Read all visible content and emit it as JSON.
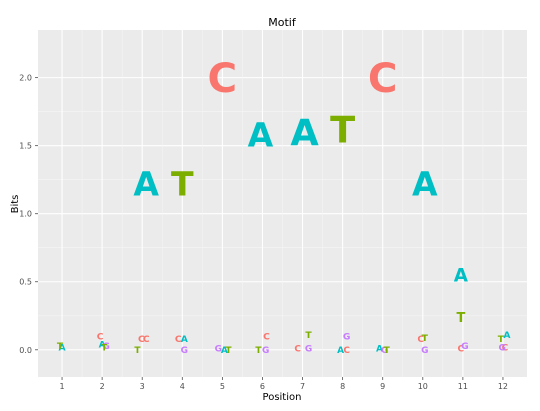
{
  "chart_data": {
    "type": "sequence-logo",
    "title": "Motif",
    "xlabel": "Position",
    "ylabel": "Bits",
    "x_ticks": [
      "1",
      "2",
      "3",
      "4",
      "5",
      "6",
      "7",
      "8",
      "9",
      "10",
      "11",
      "12"
    ],
    "y_ticks": [
      "0.0",
      "0.5",
      "1.0",
      "1.5",
      "2.0"
    ],
    "y_tick_values": [
      0,
      0.5,
      1.0,
      1.5,
      2.0
    ],
    "ylim": [
      -0.2,
      2.35
    ],
    "xlim": [
      0.4,
      12.6
    ],
    "grid": true,
    "letter_colors": {
      "A": "#00BFC4",
      "C": "#F8766D",
      "G": "#C77CFF",
      "T": "#7CAE00"
    },
    "positions": [
      {
        "pos": 1,
        "letters": [
          {
            "l": "A",
            "x": 1.0,
            "y": 0.02,
            "size": 0.05
          },
          {
            "l": "T",
            "x": 0.95,
            "y": 0.03,
            "size": 0.05
          }
        ]
      },
      {
        "pos": 2,
        "letters": [
          {
            "l": "C",
            "x": 1.95,
            "y": 0.1,
            "size": 0.05
          },
          {
            "l": "A",
            "x": 2.0,
            "y": 0.04,
            "size": 0.05
          },
          {
            "l": "G",
            "x": 2.1,
            "y": 0.03,
            "size": 0.045
          },
          {
            "l": "T",
            "x": 2.05,
            "y": 0.02,
            "size": 0.045
          }
        ]
      },
      {
        "pos": 3,
        "letters": [
          {
            "l": "C",
            "x": 2.98,
            "y": 0.08,
            "size": 0.05
          },
          {
            "l": "C",
            "x": 3.1,
            "y": 0.08,
            "size": 0.05
          },
          {
            "l": "T",
            "x": 2.88,
            "y": 0.0,
            "size": 0.045
          }
        ]
      },
      {
        "pos": 4,
        "letters": [
          {
            "l": "C",
            "x": 3.9,
            "y": 0.08,
            "size": 0.05
          },
          {
            "l": "A",
            "x": 4.05,
            "y": 0.08,
            "size": 0.05
          },
          {
            "l": "G",
            "x": 4.05,
            "y": 0.0,
            "size": 0.045
          }
        ]
      },
      {
        "pos": 5,
        "letters": [
          {
            "l": "A",
            "x": 5.0,
            "y": 2.0,
            "size": 0.2
          },
          {
            "l": "C",
            "x": 5.0,
            "y": 2.0,
            "size": 0.22
          },
          {
            "l": "G",
            "x": 4.9,
            "y": 0.01,
            "size": 0.045
          },
          {
            "l": "A",
            "x": 5.05,
            "y": 0.0,
            "size": 0.045
          },
          {
            "l": "T",
            "x": 5.15,
            "y": 0.0,
            "size": 0.045
          }
        ]
      },
      {
        "pos": 6,
        "letters": [
          {
            "l": "A",
            "x": 5.95,
            "y": 1.58,
            "size": 0.18
          },
          {
            "l": "C",
            "x": 6.1,
            "y": 0.1,
            "size": 0.05
          },
          {
            "l": "T",
            "x": 5.9,
            "y": 0.0,
            "size": 0.045
          },
          {
            "l": "G",
            "x": 6.08,
            "y": 0.0,
            "size": 0.045
          }
        ]
      },
      {
        "pos": 7,
        "letters": [
          {
            "l": "A",
            "x": 7.05,
            "y": 1.6,
            "size": 0.2
          },
          {
            "l": "T",
            "x": 7.15,
            "y": 0.11,
            "size": 0.05
          },
          {
            "l": "C",
            "x": 6.88,
            "y": 0.01,
            "size": 0.045
          },
          {
            "l": "G",
            "x": 7.15,
            "y": 0.01,
            "size": 0.045
          }
        ]
      },
      {
        "pos": 8,
        "letters": [
          {
            "l": "T",
            "x": 8.0,
            "y": 1.62,
            "size": 0.2
          },
          {
            "l": "G",
            "x": 8.1,
            "y": 0.1,
            "size": 0.05
          },
          {
            "l": "A",
            "x": 7.95,
            "y": 0.0,
            "size": 0.045
          },
          {
            "l": "C",
            "x": 8.1,
            "y": 0.0,
            "size": 0.045
          }
        ]
      },
      {
        "pos": 9,
        "letters": [
          {
            "l": "C",
            "x": 9.0,
            "y": 2.0,
            "size": 0.22
          },
          {
            "l": "A",
            "x": 8.92,
            "y": 0.01,
            "size": 0.045
          },
          {
            "l": "G",
            "x": 9.05,
            "y": 0.0,
            "size": 0.04
          },
          {
            "l": "T",
            "x": 9.1,
            "y": 0.0,
            "size": 0.045
          }
        ]
      },
      {
        "pos": 10,
        "letters": [
          {
            "l": "A",
            "x": 10.05,
            "y": 1.22,
            "size": 0.18
          },
          {
            "l": "C",
            "x": 9.95,
            "y": 0.08,
            "size": 0.05
          },
          {
            "l": "T",
            "x": 10.05,
            "y": 0.09,
            "size": 0.05
          },
          {
            "l": "G",
            "x": 10.05,
            "y": 0.0,
            "size": 0.045
          }
        ]
      },
      {
        "pos": 11,
        "letters": [
          {
            "l": "A",
            "x": 10.95,
            "y": 0.55,
            "size": 0.1
          },
          {
            "l": "T",
            "x": 10.95,
            "y": 0.24,
            "size": 0.07
          },
          {
            "l": "C",
            "x": 10.95,
            "y": 0.01,
            "size": 0.045
          },
          {
            "l": "G",
            "x": 11.05,
            "y": 0.03,
            "size": 0.05
          }
        ]
      },
      {
        "pos": 12,
        "letters": [
          {
            "l": "T",
            "x": 11.95,
            "y": 0.08,
            "size": 0.05
          },
          {
            "l": "A",
            "x": 12.1,
            "y": 0.11,
            "size": 0.05
          },
          {
            "l": "C",
            "x": 12.05,
            "y": 0.02,
            "size": 0.045
          },
          {
            "l": "G",
            "x": 11.98,
            "y": 0.02,
            "size": 0.045
          }
        ]
      }
    ],
    "big_letters": [
      {
        "pos": 3,
        "letter": "A"
      },
      {
        "pos": 4,
        "letter": "T"
      }
    ]
  }
}
